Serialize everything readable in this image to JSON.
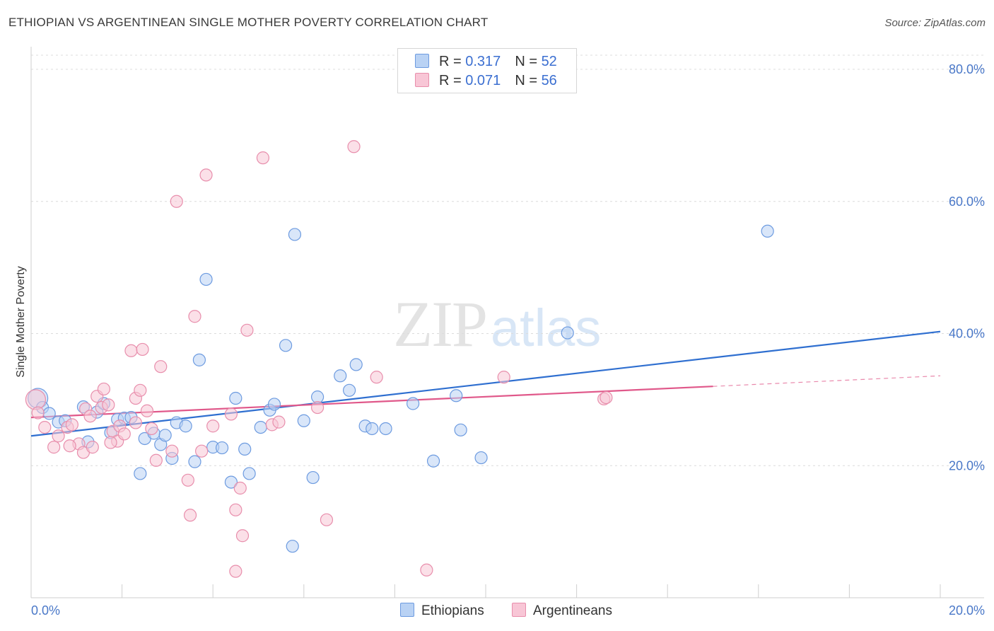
{
  "title": "ETHIOPIAN VS ARGENTINEAN SINGLE MOTHER POVERTY CORRELATION CHART",
  "source": "Source: ZipAtlas.com",
  "legend": {
    "rows": [
      {
        "r_label": "R = ",
        "r_value": "0.317",
        "n_label": "N = ",
        "n_value": "52"
      },
      {
        "r_label": "R = ",
        "r_value": "0.071",
        "n_label": "N = ",
        "n_value": "56"
      }
    ]
  },
  "bottom_legend": {
    "ethiopians": "Ethiopians",
    "argentineans": "Argentineans"
  },
  "watermark": {
    "zip": "ZIP",
    "atlas": "atlas"
  },
  "colors": {
    "ethiopians_fill": "#b9d2f4",
    "ethiopians_stroke": "#6d9be0",
    "ethiopians_line": "#2f6fd0",
    "argentineans_fill": "#f8c6d6",
    "argentineans_stroke": "#e88eac",
    "argentineans_line": "#e0588a"
  },
  "chart_data": {
    "type": "scatter",
    "title": "ETHIOPIAN VS ARGENTINEAN SINGLE MOTHER POVERTY CORRELATION CHART",
    "xlabel": "",
    "ylabel": "Single Mother Poverty",
    "xlim": [
      0,
      20
    ],
    "ylim": [
      0,
      83
    ],
    "x_tick_labels": [
      "0.0%",
      "20.0%"
    ],
    "y_ticks": [
      20,
      40,
      60,
      80
    ],
    "y_tick_labels": [
      "20.0%",
      "40.0%",
      "60.0%",
      "80.0%"
    ],
    "grid": true,
    "legend_position": "top-center",
    "series": [
      {
        "name": "Ethiopians",
        "R": 0.317,
        "N": 52,
        "trend": {
          "x": [
            0,
            20
          ],
          "y": [
            24.5,
            40.3
          ],
          "dashed_extension": false
        },
        "points": [
          [
            0.15,
            30.2
          ],
          [
            0.25,
            28.8
          ],
          [
            0.4,
            27.9
          ],
          [
            0.6,
            26.6
          ],
          [
            0.75,
            26.8
          ],
          [
            1.15,
            28.9
          ],
          [
            1.25,
            23.6
          ],
          [
            1.45,
            28.1
          ],
          [
            1.6,
            29.4
          ],
          [
            1.75,
            25.0
          ],
          [
            1.9,
            27.0
          ],
          [
            2.05,
            27.2
          ],
          [
            2.2,
            27.3
          ],
          [
            2.4,
            18.8
          ],
          [
            2.5,
            24.1
          ],
          [
            2.7,
            24.9
          ],
          [
            2.85,
            23.2
          ],
          [
            2.95,
            24.6
          ],
          [
            3.1,
            21.1
          ],
          [
            3.2,
            26.5
          ],
          [
            3.4,
            26.0
          ],
          [
            3.6,
            20.6
          ],
          [
            3.7,
            36.0
          ],
          [
            3.85,
            48.2
          ],
          [
            4.0,
            22.8
          ],
          [
            4.2,
            22.7
          ],
          [
            4.4,
            17.5
          ],
          [
            4.5,
            30.2
          ],
          [
            4.7,
            22.5
          ],
          [
            4.8,
            18.8
          ],
          [
            5.05,
            25.8
          ],
          [
            5.25,
            28.4
          ],
          [
            5.35,
            29.3
          ],
          [
            5.6,
            38.2
          ],
          [
            5.75,
            7.8
          ],
          [
            5.8,
            55.0
          ],
          [
            6.0,
            26.8
          ],
          [
            6.2,
            18.2
          ],
          [
            6.3,
            30.4
          ],
          [
            6.8,
            33.6
          ],
          [
            7.0,
            31.4
          ],
          [
            7.15,
            35.3
          ],
          [
            7.35,
            26.0
          ],
          [
            7.5,
            25.6
          ],
          [
            7.8,
            25.6
          ],
          [
            8.4,
            29.4
          ],
          [
            8.85,
            20.7
          ],
          [
            9.35,
            30.6
          ],
          [
            9.45,
            25.4
          ],
          [
            9.9,
            21.2
          ],
          [
            11.8,
            40.1
          ],
          [
            16.2,
            55.5
          ]
        ]
      },
      {
        "name": "Argentineans",
        "R": 0.071,
        "N": 56,
        "trend": {
          "x": [
            0,
            15
          ],
          "y": [
            27.3,
            32.0
          ],
          "dashed_to": [
            20,
            33.6
          ]
        },
        "points": [
          [
            0.1,
            30.0
          ],
          [
            0.15,
            28.0
          ],
          [
            0.3,
            25.8
          ],
          [
            0.5,
            22.8
          ],
          [
            0.6,
            24.5
          ],
          [
            0.8,
            25.8
          ],
          [
            0.9,
            26.2
          ],
          [
            1.05,
            23.3
          ],
          [
            1.2,
            28.6
          ],
          [
            1.15,
            22.0
          ],
          [
            1.3,
            27.5
          ],
          [
            1.35,
            22.8
          ],
          [
            1.45,
            30.5
          ],
          [
            1.55,
            28.8
          ],
          [
            1.6,
            31.6
          ],
          [
            1.7,
            29.2
          ],
          [
            1.8,
            25.2
          ],
          [
            1.9,
            23.7
          ],
          [
            1.95,
            26.0
          ],
          [
            2.05,
            24.8
          ],
          [
            2.2,
            37.4
          ],
          [
            2.3,
            30.2
          ],
          [
            2.4,
            31.4
          ],
          [
            2.45,
            37.6
          ],
          [
            2.55,
            28.3
          ],
          [
            2.65,
            25.6
          ],
          [
            2.75,
            20.8
          ],
          [
            2.85,
            35.0
          ],
          [
            3.1,
            22.2
          ],
          [
            3.2,
            60.0
          ],
          [
            3.45,
            17.8
          ],
          [
            3.5,
            12.5
          ],
          [
            3.6,
            42.6
          ],
          [
            3.75,
            22.2
          ],
          [
            3.85,
            64.0
          ],
          [
            4.0,
            26.0
          ],
          [
            4.4,
            27.8
          ],
          [
            4.5,
            13.3
          ],
          [
            4.6,
            16.6
          ],
          [
            4.65,
            9.4
          ],
          [
            4.75,
            40.5
          ],
          [
            4.5,
            4.0
          ],
          [
            5.1,
            66.6
          ],
          [
            5.3,
            26.2
          ],
          [
            5.45,
            26.6
          ],
          [
            6.3,
            28.8
          ],
          [
            6.5,
            11.8
          ],
          [
            7.1,
            68.3
          ],
          [
            7.6,
            33.4
          ],
          [
            8.7,
            4.2
          ],
          [
            10.4,
            33.4
          ],
          [
            12.6,
            30.1
          ],
          [
            12.65,
            30.3
          ],
          [
            0.85,
            23.0
          ],
          [
            1.75,
            23.5
          ],
          [
            2.3,
            26.5
          ]
        ]
      }
    ]
  }
}
